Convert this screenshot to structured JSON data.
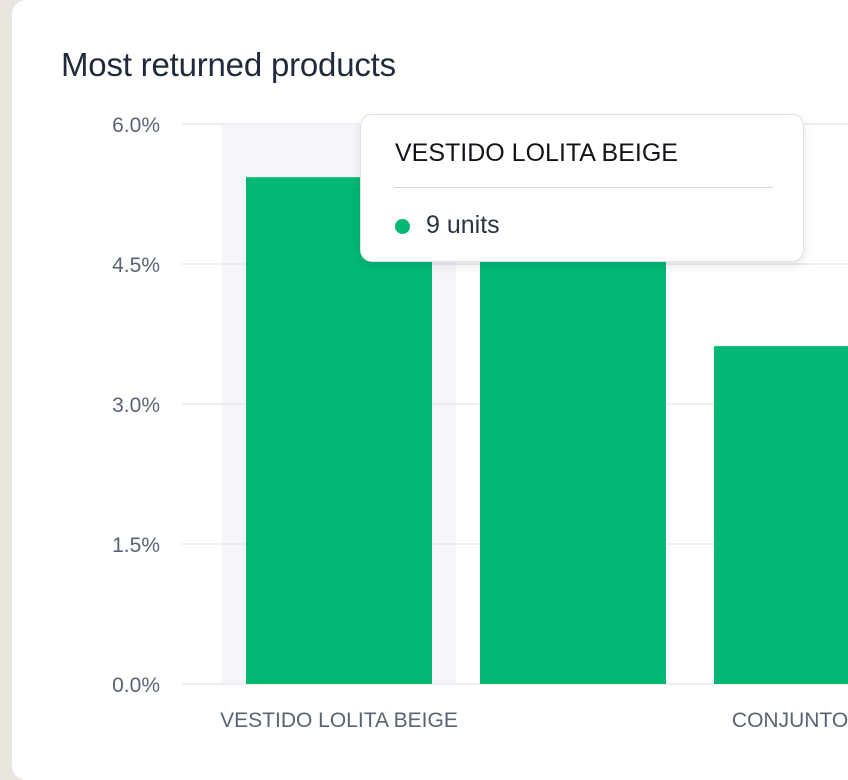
{
  "card": {
    "title": "Most returned products"
  },
  "chart_data": {
    "type": "bar",
    "title": "Most returned products",
    "xlabel": "",
    "ylabel": "",
    "ylim": [
      0,
      6
    ],
    "yticks": [
      "6.0%",
      "4.5%",
      "3.0%",
      "1.5%",
      "0.0%"
    ],
    "ytick_values": [
      6.0,
      4.5,
      3.0,
      1.5,
      0.0
    ],
    "grid": true,
    "bar_color": "#00b873",
    "highlight_color": "#f5f6f9",
    "categories": [
      "VESTIDO LOLITA BEIGE",
      "",
      "CONJUNTO BA"
    ],
    "values": [
      5.43,
      5.5,
      3.62
    ],
    "highlighted_index": 0
  },
  "tooltip": {
    "title": "VESTIDO LOLITA BEIGE",
    "value": "9 units",
    "dot_color": "#00b873"
  }
}
